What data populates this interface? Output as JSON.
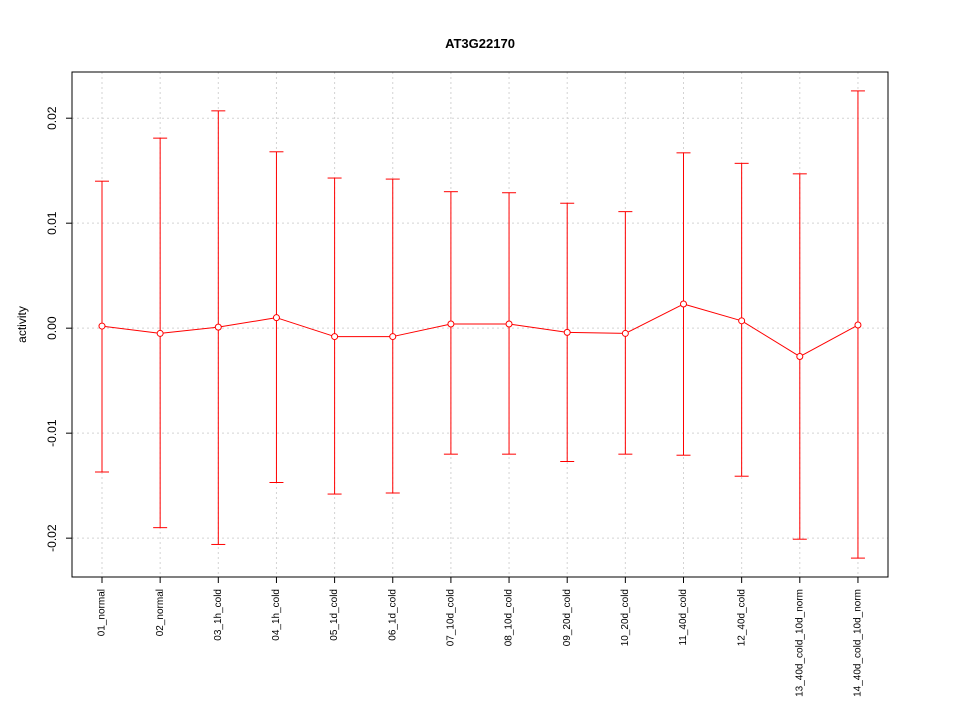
{
  "chart_data": {
    "type": "line",
    "title": "AT3G22170",
    "xlabel": "",
    "ylabel": "activity",
    "categories": [
      "01_normal",
      "02_normal",
      "03_1h_cold",
      "04_1h_cold",
      "05_1d_cold",
      "06_1d_cold",
      "07_10d_cold",
      "08_10d_cold",
      "09_20d_cold",
      "10_20d_cold",
      "11_40d_cold",
      "12_40d_cold",
      "13_40d_cold_10d_norm",
      "14_40d_cold_10d_norm"
    ],
    "series": [
      {
        "values": [
          0.0002,
          -0.0005,
          0.0001,
          0.001,
          -0.0008,
          -0.0008,
          0.0004,
          0.0004,
          -0.0004,
          -0.0005,
          0.0023,
          0.0007,
          -0.0027,
          0.0003
        ],
        "upper": [
          0.014,
          0.0181,
          0.0207,
          0.0168,
          0.0143,
          0.0142,
          0.013,
          0.0129,
          0.0119,
          0.0111,
          0.0167,
          0.0157,
          0.0147,
          0.0226
        ],
        "lower": [
          -0.0137,
          -0.019,
          -0.0206,
          -0.0147,
          -0.0158,
          -0.0157,
          -0.012,
          -0.012,
          -0.0127,
          -0.012,
          -0.0121,
          -0.0141,
          -0.0201,
          -0.0219
        ]
      }
    ],
    "ylim": [
      -0.0237,
      0.0244
    ],
    "yticks": [
      -0.02,
      -0.01,
      0.0,
      0.01,
      0.02
    ],
    "ytick_labels": [
      "-0.02",
      "-0.01",
      "0.00",
      "0.01",
      "0.02"
    ],
    "grid": true,
    "color": "#ff0000",
    "grid_color": "#d3d3d3"
  }
}
